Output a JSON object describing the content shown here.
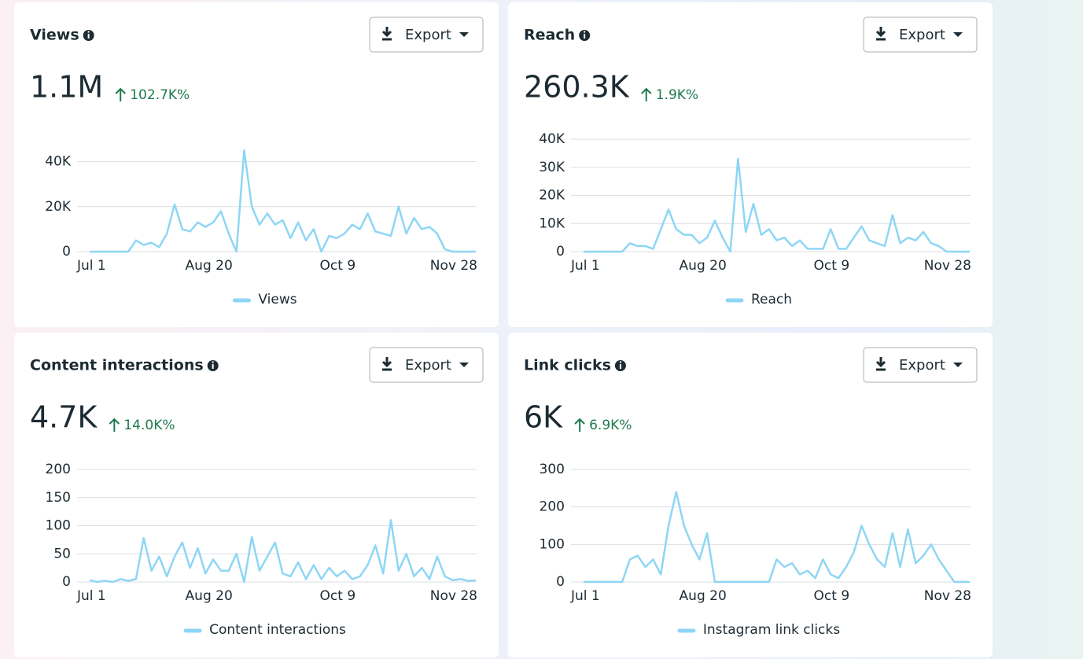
{
  "export_label": "Export",
  "chart_data": [
    {
      "type": "line",
      "title": "Views",
      "headline": "1.1M",
      "change": "102.7K%",
      "x": [
        0,
        3,
        6,
        9,
        12,
        15,
        18,
        21,
        24,
        27,
        30,
        33,
        36,
        39,
        42,
        45,
        48,
        51,
        54,
        57,
        60,
        63,
        66,
        69,
        72,
        75,
        78,
        81,
        84,
        87,
        90,
        93,
        96,
        99,
        102,
        105,
        108,
        111,
        114,
        117,
        120,
        123,
        126,
        129,
        132,
        135,
        138,
        141,
        144,
        147,
        150
      ],
      "series": [
        {
          "name": "Views",
          "color": "#8ed6f5",
          "values": [
            0,
            0,
            0,
            0,
            0,
            0,
            5000,
            3000,
            4000,
            2000,
            8000,
            21000,
            10000,
            9000,
            13000,
            11000,
            13000,
            18000,
            8000,
            0,
            45000,
            20000,
            12000,
            17000,
            12000,
            14000,
            6000,
            13000,
            5000,
            10000,
            0,
            7000,
            6000,
            8000,
            12000,
            10000,
            17000,
            9000,
            8000,
            7000,
            20000,
            8000,
            15000,
            10000,
            11000,
            8000,
            1000,
            0,
            0,
            0,
            0
          ]
        }
      ],
      "xlim": [
        0,
        150
      ],
      "xticks": [
        {
          "value": 0,
          "label": "Jul 1"
        },
        {
          "value": 50,
          "label": "Aug 20"
        },
        {
          "value": 100,
          "label": "Oct 9"
        },
        {
          "value": 150,
          "label": "Nov 28"
        }
      ],
      "ylim": [
        0,
        50000
      ],
      "yticks": [
        0,
        {
          "value": 20000,
          "label": "20K"
        },
        {
          "value": 40000,
          "label": "40K"
        }
      ],
      "grid": true
    },
    {
      "type": "line",
      "title": "Reach",
      "headline": "260.3K",
      "change": "1.9K%",
      "x": [
        0,
        3,
        6,
        9,
        12,
        15,
        18,
        21,
        24,
        27,
        30,
        33,
        36,
        39,
        42,
        45,
        48,
        51,
        54,
        57,
        60,
        63,
        66,
        69,
        72,
        75,
        78,
        81,
        84,
        87,
        90,
        93,
        96,
        99,
        102,
        105,
        108,
        111,
        114,
        117,
        120,
        123,
        126,
        129,
        132,
        135,
        138,
        141,
        144,
        147,
        150
      ],
      "series": [
        {
          "name": "Reach",
          "color": "#8ed6f5",
          "values": [
            0,
            0,
            0,
            0,
            0,
            0,
            3000,
            2000,
            2000,
            1000,
            8000,
            15000,
            8000,
            6000,
            6000,
            3000,
            5000,
            11000,
            5000,
            0,
            33000,
            7000,
            17000,
            6000,
            8000,
            4000,
            5000,
            2000,
            4000,
            1000,
            1000,
            1000,
            8000,
            1000,
            1000,
            5000,
            9000,
            4000,
            3000,
            2000,
            13000,
            3000,
            5000,
            4000,
            7000,
            3000,
            2000,
            0,
            0,
            0,
            0
          ]
        }
      ],
      "xlim": [
        0,
        150
      ],
      "xticks": [
        {
          "value": 0,
          "label": "Jul 1"
        },
        {
          "value": 50,
          "label": "Aug 20"
        },
        {
          "value": 100,
          "label": "Oct 9"
        },
        {
          "value": 150,
          "label": "Nov 28"
        }
      ],
      "ylim": [
        0,
        40000
      ],
      "yticks": [
        0,
        {
          "value": 10000,
          "label": "10K"
        },
        {
          "value": 20000,
          "label": "20K"
        },
        {
          "value": 30000,
          "label": "30K"
        },
        {
          "value": 40000,
          "label": "40K"
        }
      ],
      "grid": true
    },
    {
      "type": "line",
      "title": "Content interactions",
      "headline": "4.7K",
      "change": "14.0K%",
      "x": [
        0,
        3,
        6,
        9,
        12,
        15,
        18,
        21,
        24,
        27,
        30,
        33,
        36,
        39,
        42,
        45,
        48,
        51,
        54,
        57,
        60,
        63,
        66,
        69,
        72,
        75,
        78,
        81,
        84,
        87,
        90,
        93,
        96,
        99,
        102,
        105,
        108,
        111,
        114,
        117,
        120,
        123,
        126,
        129,
        132,
        135,
        138,
        141,
        144,
        147,
        150
      ],
      "series": [
        {
          "name": "Content interactions",
          "color": "#8ed6f5",
          "values": [
            3,
            0,
            2,
            0,
            5,
            2,
            5,
            78,
            20,
            45,
            10,
            45,
            70,
            25,
            60,
            15,
            40,
            20,
            20,
            50,
            0,
            80,
            20,
            45,
            70,
            15,
            10,
            35,
            5,
            30,
            5,
            25,
            10,
            20,
            5,
            10,
            30,
            65,
            15,
            110,
            20,
            50,
            10,
            25,
            5,
            45,
            10,
            3,
            5,
            2,
            3
          ]
        }
      ],
      "xlim": [
        0,
        150
      ],
      "xticks": [
        {
          "value": 0,
          "label": "Jul 1"
        },
        {
          "value": 50,
          "label": "Aug 20"
        },
        {
          "value": 100,
          "label": "Oct 9"
        },
        {
          "value": 150,
          "label": "Nov 28"
        }
      ],
      "ylim": [
        0,
        200
      ],
      "yticks": [
        0,
        50,
        100,
        150,
        200
      ],
      "grid": true
    },
    {
      "type": "line",
      "title": "Link clicks",
      "headline": "6K",
      "change": "6.9K%",
      "x": [
        0,
        3,
        6,
        9,
        12,
        15,
        18,
        21,
        24,
        27,
        30,
        33,
        36,
        39,
        42,
        45,
        48,
        51,
        54,
        57,
        60,
        63,
        66,
        69,
        72,
        75,
        78,
        81,
        84,
        87,
        90,
        93,
        96,
        99,
        102,
        105,
        108,
        111,
        114,
        117,
        120,
        123,
        126,
        129,
        132,
        135,
        138,
        141,
        144,
        147,
        150
      ],
      "series": [
        {
          "name": "Instagram link clicks",
          "color": "#8ed6f5",
          "values": [
            0,
            0,
            0,
            0,
            0,
            0,
            60,
            70,
            40,
            60,
            20,
            150,
            240,
            150,
            100,
            60,
            130,
            0,
            0,
            0,
            0,
            0,
            0,
            0,
            0,
            60,
            40,
            50,
            20,
            30,
            10,
            60,
            20,
            10,
            40,
            80,
            150,
            100,
            60,
            40,
            130,
            40,
            140,
            50,
            70,
            100,
            60,
            30,
            0,
            0,
            0
          ]
        }
      ],
      "xlim": [
        0,
        150
      ],
      "xticks": [
        {
          "value": 0,
          "label": "Jul 1"
        },
        {
          "value": 50,
          "label": "Aug 20"
        },
        {
          "value": 100,
          "label": "Oct 9"
        },
        {
          "value": 150,
          "label": "Nov 28"
        }
      ],
      "ylim": [
        0,
        300
      ],
      "yticks": [
        0,
        100,
        200,
        300
      ],
      "grid": true
    }
  ]
}
